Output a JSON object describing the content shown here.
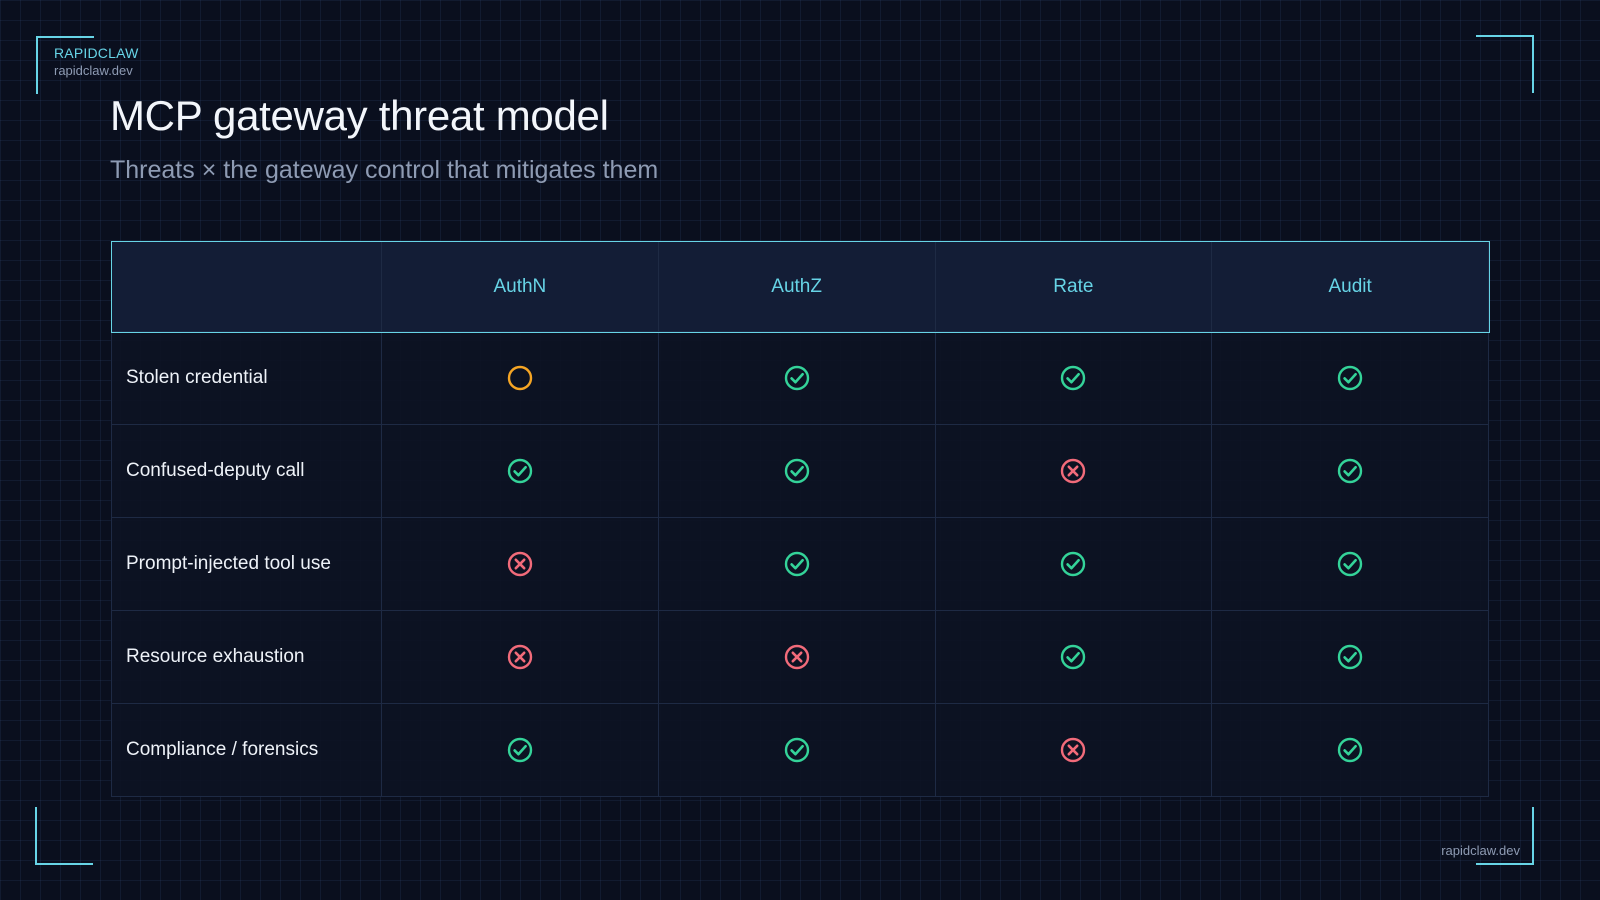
{
  "brand": {
    "name": "RAPIDCLAW",
    "url": "rapidclaw.dev"
  },
  "title": "MCP gateway threat model",
  "subtitle": "Threats × the gateway control that mitigates them",
  "columns": [
    "AuthN",
    "AuthZ",
    "Rate",
    "Audit"
  ],
  "colors": {
    "mitigated": "#34d399",
    "partial": "#f5a524",
    "not_mitigated": "#f26b7a",
    "accent": "#67d4e6"
  },
  "rows": [
    {
      "threat": "Stolen credential",
      "cells": [
        "partial",
        "mitigated",
        "mitigated",
        "mitigated"
      ]
    },
    {
      "threat": "Confused-deputy call",
      "cells": [
        "mitigated",
        "mitigated",
        "not-mitigated",
        "mitigated"
      ]
    },
    {
      "threat": "Prompt-injected tool use",
      "cells": [
        "not-mitigated",
        "mitigated",
        "mitigated",
        "mitigated"
      ]
    },
    {
      "threat": "Resource exhaustion",
      "cells": [
        "not-mitigated",
        "not-mitigated",
        "mitigated",
        "mitigated"
      ]
    },
    {
      "threat": "Compliance / forensics",
      "cells": [
        "mitigated",
        "mitigated",
        "not-mitigated",
        "mitigated"
      ]
    }
  ],
  "footer": {
    "url": "rapidclaw.dev"
  }
}
